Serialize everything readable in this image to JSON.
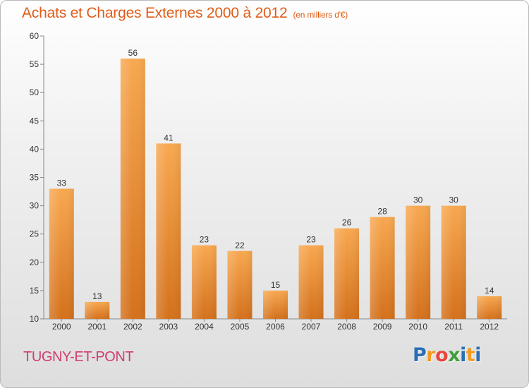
{
  "header": {
    "title": "Achats et Charges Externes 2000 à 2012",
    "subtitle": "(en milliers d'€)"
  },
  "footer": {
    "city": "TUGNY-ET-PONT",
    "logo_letters": [
      "P",
      "r",
      "o",
      "x",
      "i",
      "t",
      "i"
    ]
  },
  "colors": {
    "title": "#e05c18",
    "city": "#cf3d6d",
    "bar_top": "#f8a850",
    "bar_bottom": "#d4711c",
    "logo": [
      "#2a6fb5",
      "#f39a1f",
      "#e8453c",
      "#3f9e3a",
      "#2a6fb5",
      "#f39a1f",
      "#2a6fb5"
    ]
  },
  "chart_data": {
    "type": "bar",
    "title": "Achats et Charges Externes 2000 à 2012",
    "subtitle": "(en milliers d'€)",
    "xlabel": "",
    "ylabel": "",
    "categories": [
      "2000",
      "2001",
      "2002",
      "2003",
      "2004",
      "2005",
      "2006",
      "2007",
      "2008",
      "2009",
      "2010",
      "2011",
      "2012"
    ],
    "values": [
      33,
      13,
      56,
      41,
      23,
      22,
      15,
      23,
      26,
      28,
      30,
      30,
      14
    ],
    "ylim": [
      10,
      60
    ],
    "yticks": [
      10,
      15,
      20,
      25,
      30,
      35,
      40,
      45,
      50,
      55,
      60
    ],
    "grid": false,
    "legend": "none"
  }
}
